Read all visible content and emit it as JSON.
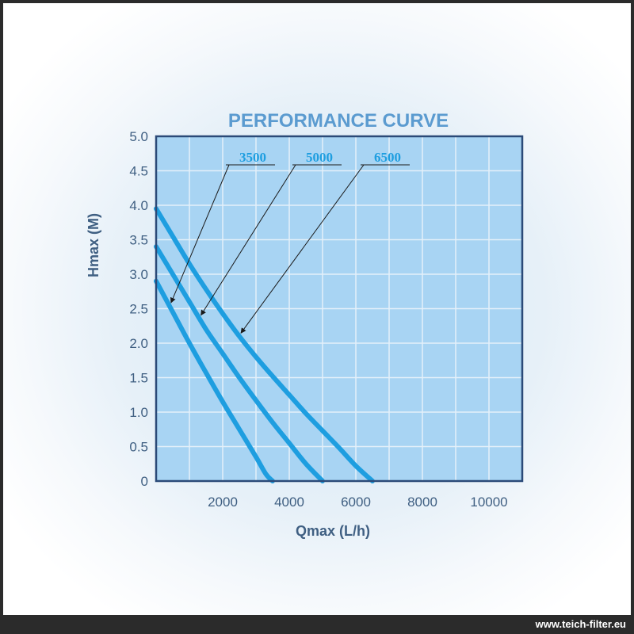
{
  "chart_data": {
    "type": "line",
    "title": "PERFORMANCE CURVE",
    "xlabel": "Qmax (L/h)",
    "ylabel": "Hmax (M)",
    "xlim": [
      0,
      11000
    ],
    "ylim": [
      0,
      5.0
    ],
    "x_ticks": [
      "2000",
      "4000",
      "6000",
      "8000",
      "10000"
    ],
    "x_tick_values": [
      2000,
      4000,
      6000,
      8000,
      10000
    ],
    "y_ticks": [
      "0",
      "0.5",
      "1.0",
      "1.5",
      "2.0",
      "2.5",
      "3.0",
      "3.5",
      "4.0",
      "4.5",
      "5.0"
    ],
    "y_tick_values": [
      0,
      0.5,
      1.0,
      1.5,
      2.0,
      2.5,
      3.0,
      3.5,
      4.0,
      4.5,
      5.0
    ],
    "grid": true,
    "series": [
      {
        "name": "3500",
        "x": [
          0,
          500,
          1000,
          1500,
          2000,
          2500,
          3000,
          3300,
          3500
        ],
        "y": [
          2.9,
          2.45,
          2.0,
          1.57,
          1.15,
          0.75,
          0.35,
          0.1,
          0
        ]
      },
      {
        "name": "5000",
        "x": [
          0,
          500,
          1000,
          1500,
          2000,
          2500,
          3000,
          3500,
          4000,
          4500,
          5000
        ],
        "y": [
          3.4,
          3.0,
          2.6,
          2.2,
          1.85,
          1.5,
          1.17,
          0.85,
          0.55,
          0.25,
          0
        ]
      },
      {
        "name": "6500",
        "x": [
          0,
          500,
          1000,
          1500,
          2000,
          2500,
          3000,
          3500,
          4000,
          4500,
          5000,
          5500,
          6000,
          6500
        ],
        "y": [
          3.95,
          3.55,
          3.15,
          2.78,
          2.43,
          2.1,
          1.8,
          1.52,
          1.25,
          0.98,
          0.73,
          0.48,
          0.22,
          0
        ]
      }
    ],
    "colors": {
      "plot_bg": "#a8d4f3",
      "border": "#2b4a78",
      "grid": "#e4f0fa",
      "curve": "#1e9ee0",
      "text": "#3f5f82",
      "title": "#5b9bd0",
      "arrow": "#1a1a1a"
    }
  },
  "footer": {
    "watermark": "www.teich-filter.eu"
  }
}
